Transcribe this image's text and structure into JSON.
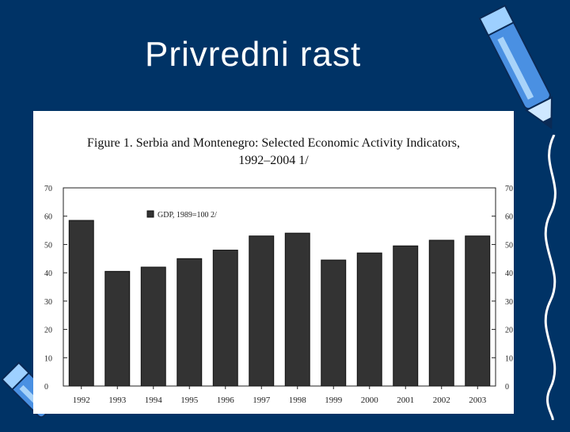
{
  "slide": {
    "title": "Privredni rast",
    "background": "#003366"
  },
  "decorations": {
    "top_right": "pencil-icon",
    "bottom_left": "pencil-icon"
  },
  "chart_data": {
    "type": "bar",
    "title_line1": "Figure 1. Serbia and Montenegro: Selected Economic Activity Indicators,",
    "title_line2": "1992–2004 1/",
    "categories": [
      "1992",
      "1993",
      "1994",
      "1995",
      "1996",
      "1997",
      "1998",
      "1999",
      "2000",
      "2001",
      "2002",
      "2003"
    ],
    "series": [
      {
        "name": "GDP, 1989=100 2/",
        "values": [
          58.5,
          40.5,
          42,
          45,
          48,
          53,
          54,
          44.5,
          47,
          49.5,
          51.5,
          53
        ],
        "color": "#333333"
      }
    ],
    "ylim": [
      0,
      70
    ],
    "yticks": [
      "0",
      "10",
      "20",
      "30",
      "40",
      "50",
      "60",
      "70"
    ],
    "right_yticks": [
      "0",
      "10",
      "20",
      "30",
      "40",
      "50",
      "60",
      "70"
    ],
    "legend": "top-left",
    "grid": false
  }
}
